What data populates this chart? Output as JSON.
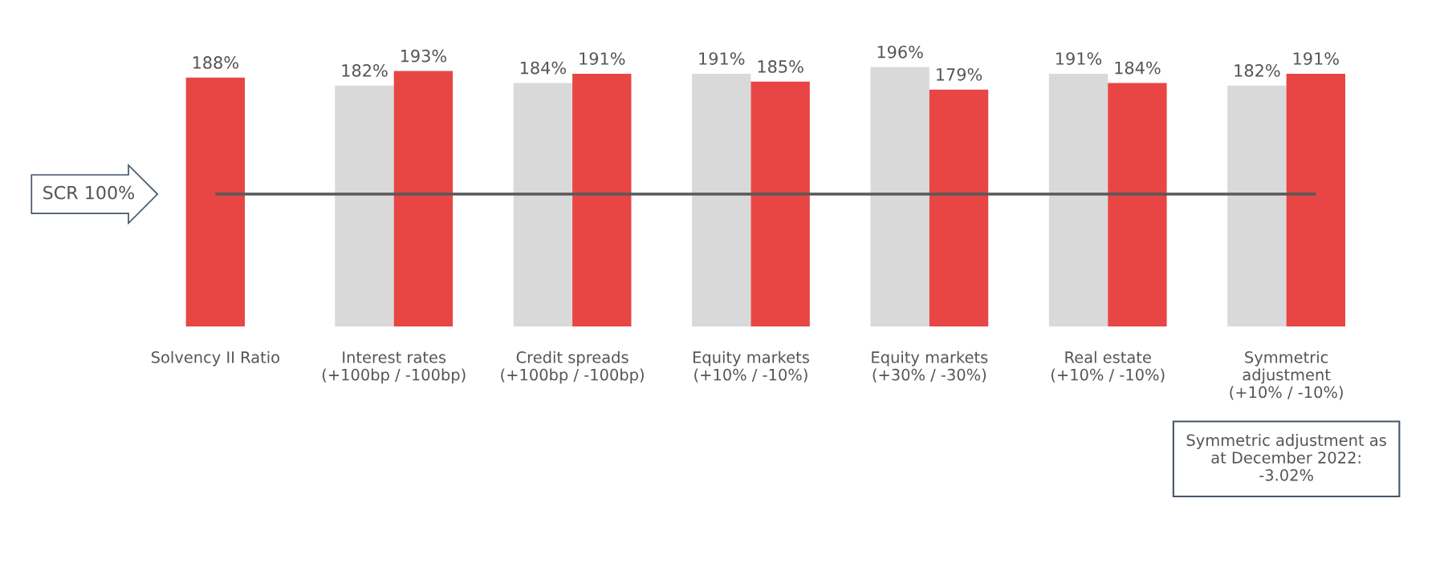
{
  "chart_data": {
    "type": "bar",
    "categories": [
      "Solvency II Ratio",
      "Interest rates\n(+100bp / -100bp)",
      "Credit spreads\n(+100bp / -100bp)",
      "Equity markets\n(+10% / -10%)",
      "Equity markets\n(+30% / -30%)",
      "Real estate\n(+10% / -10%)",
      "Symmetric\nadjustment\n(+10% / -10%)"
    ],
    "series": [
      {
        "color": "#d9d9d9",
        "values": [
          null,
          182,
          184,
          191,
          196,
          191,
          182
        ],
        "value_labels": [
          null,
          "182%",
          "184%",
          "191%",
          "196%",
          "191%",
          "182%"
        ]
      },
      {
        "color": "#e84545",
        "values": [
          188,
          193,
          191,
          185,
          179,
          184,
          191
        ],
        "value_labels": [
          "188%",
          "193%",
          "191%",
          "185%",
          "179%",
          "184%",
          "191%"
        ]
      }
    ],
    "ref_lines": [
      {
        "axis": "y",
        "value": 100,
        "label": "SCR 100%",
        "color": "#595959",
        "line_style": "solid"
      }
    ],
    "annotations": [
      "Symmetric adjustment as\nat December 2022:\n-3.02%"
    ],
    "grid": false,
    "legend": false
  }
}
